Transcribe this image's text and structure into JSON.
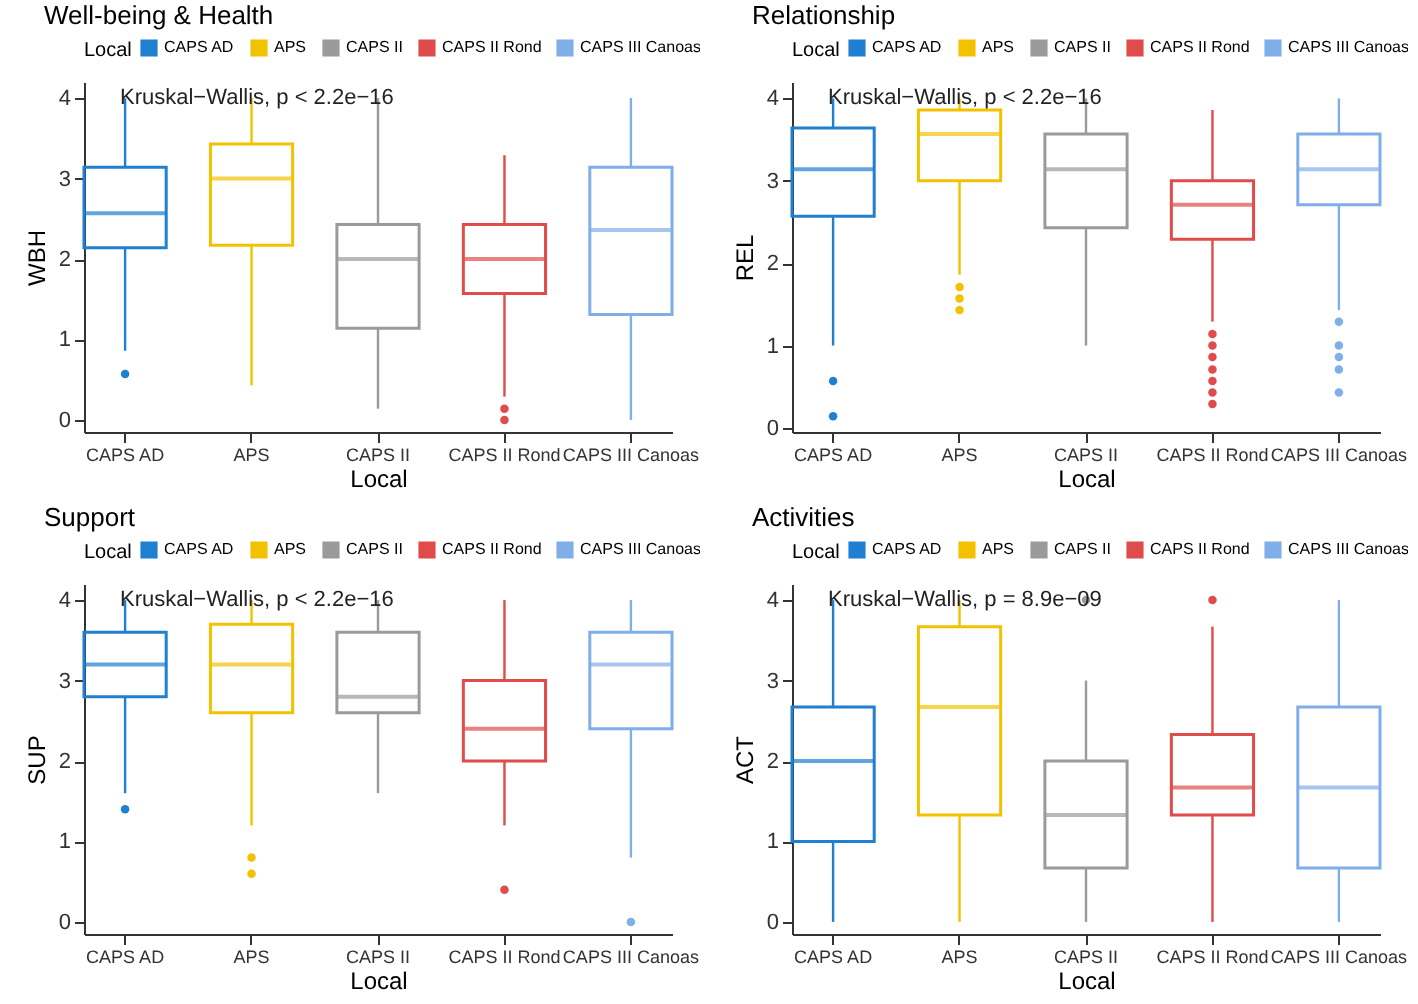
{
  "chart_data": [
    {
      "type": "box",
      "title": "Well-being & Health",
      "xlabel": "Local",
      "ylabel": "WBH",
      "legend_title": "Local",
      "legend": "top",
      "categories": [
        "CAPS AD",
        "APS",
        "CAPS II",
        "CAPS II Rond",
        "CAPS III Canoas"
      ],
      "series": [
        {
          "name": "CAPS AD",
          "color": "#1f7fd0",
          "boxes": [
            {
              "low": 0.86,
              "q1": 2.14,
              "median": 2.57,
              "q3": 3.14,
              "high": 4,
              "outliers": [
                0.57
              ]
            },
            null,
            null,
            null,
            null
          ]
        },
        {
          "name": "APS",
          "color": "#f2c200",
          "boxes": [
            null,
            {
              "low": 0.43,
              "q1": 2.17,
              "median": 3.0,
              "q3": 3.43,
              "high": 4
            },
            null,
            null,
            null
          ]
        },
        {
          "name": "CAPS II",
          "color": "#9a9a9a",
          "boxes": [
            null,
            null,
            {
              "low": 0.14,
              "q1": 1.14,
              "median": 2.0,
              "q3": 2.43,
              "high": 4
            },
            null,
            null
          ]
        },
        {
          "name": "CAPS II Rond",
          "color": "#e04b4b",
          "boxes": [
            null,
            null,
            null,
            {
              "low": 0.29,
              "q1": 1.57,
              "median": 2.0,
              "q3": 2.43,
              "high": 3.29,
              "outliers": [
                0.14,
                0
              ]
            },
            null
          ]
        },
        {
          "name": "CAPS III Canoas",
          "color": "#80aee8",
          "boxes": [
            null,
            null,
            null,
            null,
            {
              "low": 0,
              "q1": 1.31,
              "median": 2.36,
              "q3": 3.14,
              "high": 4
            }
          ]
        }
      ],
      "ylim": [
        -0.15,
        4.2
      ],
      "yticks": [
        0,
        1,
        2,
        3,
        4
      ],
      "annotations": [
        "Kruskal−Wallis, p < 2.2e−16"
      ]
    },
    {
      "type": "box",
      "title": "Relationship",
      "xlabel": "Local",
      "ylabel": "REL",
      "legend_title": "Local",
      "legend": "top",
      "categories": [
        "CAPS AD",
        "APS",
        "CAPS II",
        "CAPS II Rond",
        "CAPS III Canoas"
      ],
      "series": [
        {
          "name": "CAPS AD",
          "color": "#1f7fd0",
          "boxes": [
            {
              "low": 1.0,
              "q1": 2.57,
              "median": 3.14,
              "q3": 3.64,
              "high": 4,
              "outliers": [
                0.57,
                0.14
              ]
            },
            null,
            null,
            null,
            null
          ]
        },
        {
          "name": "APS",
          "color": "#f2c200",
          "boxes": [
            null,
            {
              "low": 1.86,
              "q1": 3.0,
              "median": 3.57,
              "q3": 3.86,
              "high": 4,
              "outliers": [
                1.71,
                1.57,
                1.43
              ]
            },
            null,
            null,
            null
          ]
        },
        {
          "name": "CAPS II",
          "color": "#9a9a9a",
          "boxes": [
            null,
            null,
            {
              "low": 1.0,
              "q1": 2.43,
              "median": 3.14,
              "q3": 3.57,
              "high": 4
            },
            null,
            null
          ]
        },
        {
          "name": "CAPS II Rond",
          "color": "#e04b4b",
          "boxes": [
            null,
            null,
            null,
            {
              "low": 1.29,
              "q1": 2.29,
              "median": 2.71,
              "q3": 3.0,
              "high": 3.86,
              "outliers": [
                1.14,
                1.0,
                0.86,
                0.71,
                0.57,
                0.43,
                0.29
              ]
            },
            null
          ]
        },
        {
          "name": "CAPS III Canoas",
          "color": "#80aee8",
          "boxes": [
            null,
            null,
            null,
            null,
            {
              "low": 1.43,
              "q1": 2.71,
              "median": 3.14,
              "q3": 3.57,
              "high": 4,
              "outliers": [
                1.29,
                1.0,
                0.86,
                0.71,
                0.43
              ]
            }
          ]
        }
      ],
      "ylim": [
        -0.05,
        4.2
      ],
      "yticks": [
        0,
        1,
        2,
        3,
        4
      ],
      "annotations": [
        "Kruskal−Wallis, p < 2.2e−16"
      ]
    },
    {
      "type": "box",
      "title": "Support",
      "xlabel": "Local",
      "ylabel": "SUP",
      "legend_title": "Local",
      "legend": "top",
      "categories": [
        "CAPS AD",
        "APS",
        "CAPS II",
        "CAPS II Rond",
        "CAPS III Canoas"
      ],
      "series": [
        {
          "name": "CAPS AD",
          "color": "#1f7fd0",
          "boxes": [
            {
              "low": 1.6,
              "q1": 2.8,
              "median": 3.2,
              "q3": 3.6,
              "high": 4,
              "outliers": [
                1.4
              ]
            },
            null,
            null,
            null,
            null
          ]
        },
        {
          "name": "APS",
          "color": "#f2c200",
          "boxes": [
            null,
            {
              "low": 1.2,
              "q1": 2.6,
              "median": 3.2,
              "q3": 3.7,
              "high": 4,
              "outliers": [
                0.8,
                0.6
              ]
            },
            null,
            null,
            null
          ]
        },
        {
          "name": "CAPS II",
          "color": "#9a9a9a",
          "boxes": [
            null,
            null,
            {
              "low": 1.6,
              "q1": 2.6,
              "median": 2.8,
              "q3": 3.6,
              "high": 4
            },
            null,
            null
          ]
        },
        {
          "name": "CAPS II Rond",
          "color": "#e04b4b",
          "boxes": [
            null,
            null,
            null,
            {
              "low": 1.2,
              "q1": 2.0,
              "median": 2.4,
              "q3": 3.0,
              "high": 4,
              "outliers": [
                0.4
              ]
            },
            null
          ]
        },
        {
          "name": "CAPS III Canoas",
          "color": "#80aee8",
          "boxes": [
            null,
            null,
            null,
            null,
            {
              "low": 0.8,
              "q1": 2.4,
              "median": 3.2,
              "q3": 3.6,
              "high": 4,
              "outliers": [
                0
              ]
            }
          ]
        }
      ],
      "ylim": [
        -0.15,
        4.2
      ],
      "yticks": [
        0,
        1,
        2,
        3,
        4
      ],
      "annotations": [
        "Kruskal−Wallis, p < 2.2e−16"
      ]
    },
    {
      "type": "box",
      "title": "Activities",
      "xlabel": "Local",
      "ylabel": "ACT",
      "legend_title": "Local",
      "legend": "top",
      "categories": [
        "CAPS AD",
        "APS",
        "CAPS II",
        "CAPS II Rond",
        "CAPS III Canoas"
      ],
      "series": [
        {
          "name": "CAPS AD",
          "color": "#1f7fd0",
          "boxes": [
            {
              "low": 0,
              "q1": 1.0,
              "median": 2.0,
              "q3": 2.67,
              "high": 4
            },
            null,
            null,
            null,
            null
          ]
        },
        {
          "name": "APS",
          "color": "#f2c200",
          "boxes": [
            null,
            {
              "low": 0,
              "q1": 1.33,
              "median": 2.67,
              "q3": 3.67,
              "high": 4
            },
            null,
            null,
            null
          ]
        },
        {
          "name": "CAPS II",
          "color": "#9a9a9a",
          "boxes": [
            null,
            null,
            {
              "low": 0,
              "q1": 0.67,
              "median": 1.33,
              "q3": 2.0,
              "high": 3.0,
              "outliers": [
                4
              ]
            },
            null,
            null
          ]
        },
        {
          "name": "CAPS II Rond",
          "color": "#e04b4b",
          "boxes": [
            null,
            null,
            null,
            {
              "low": 0,
              "q1": 1.33,
              "median": 1.67,
              "q3": 2.33,
              "high": 3.67,
              "outliers": [
                4
              ]
            },
            null
          ]
        },
        {
          "name": "CAPS III Canoas",
          "color": "#80aee8",
          "boxes": [
            null,
            null,
            null,
            null,
            {
              "low": 0,
              "q1": 0.67,
              "median": 1.67,
              "q3": 2.67,
              "high": 4
            }
          ]
        }
      ],
      "ylim": [
        -0.15,
        4.2
      ],
      "yticks": [
        0,
        1,
        2,
        3,
        4
      ],
      "annotations": [
        "Kruskal−Wallis, p = 8.9e−09"
      ]
    }
  ]
}
